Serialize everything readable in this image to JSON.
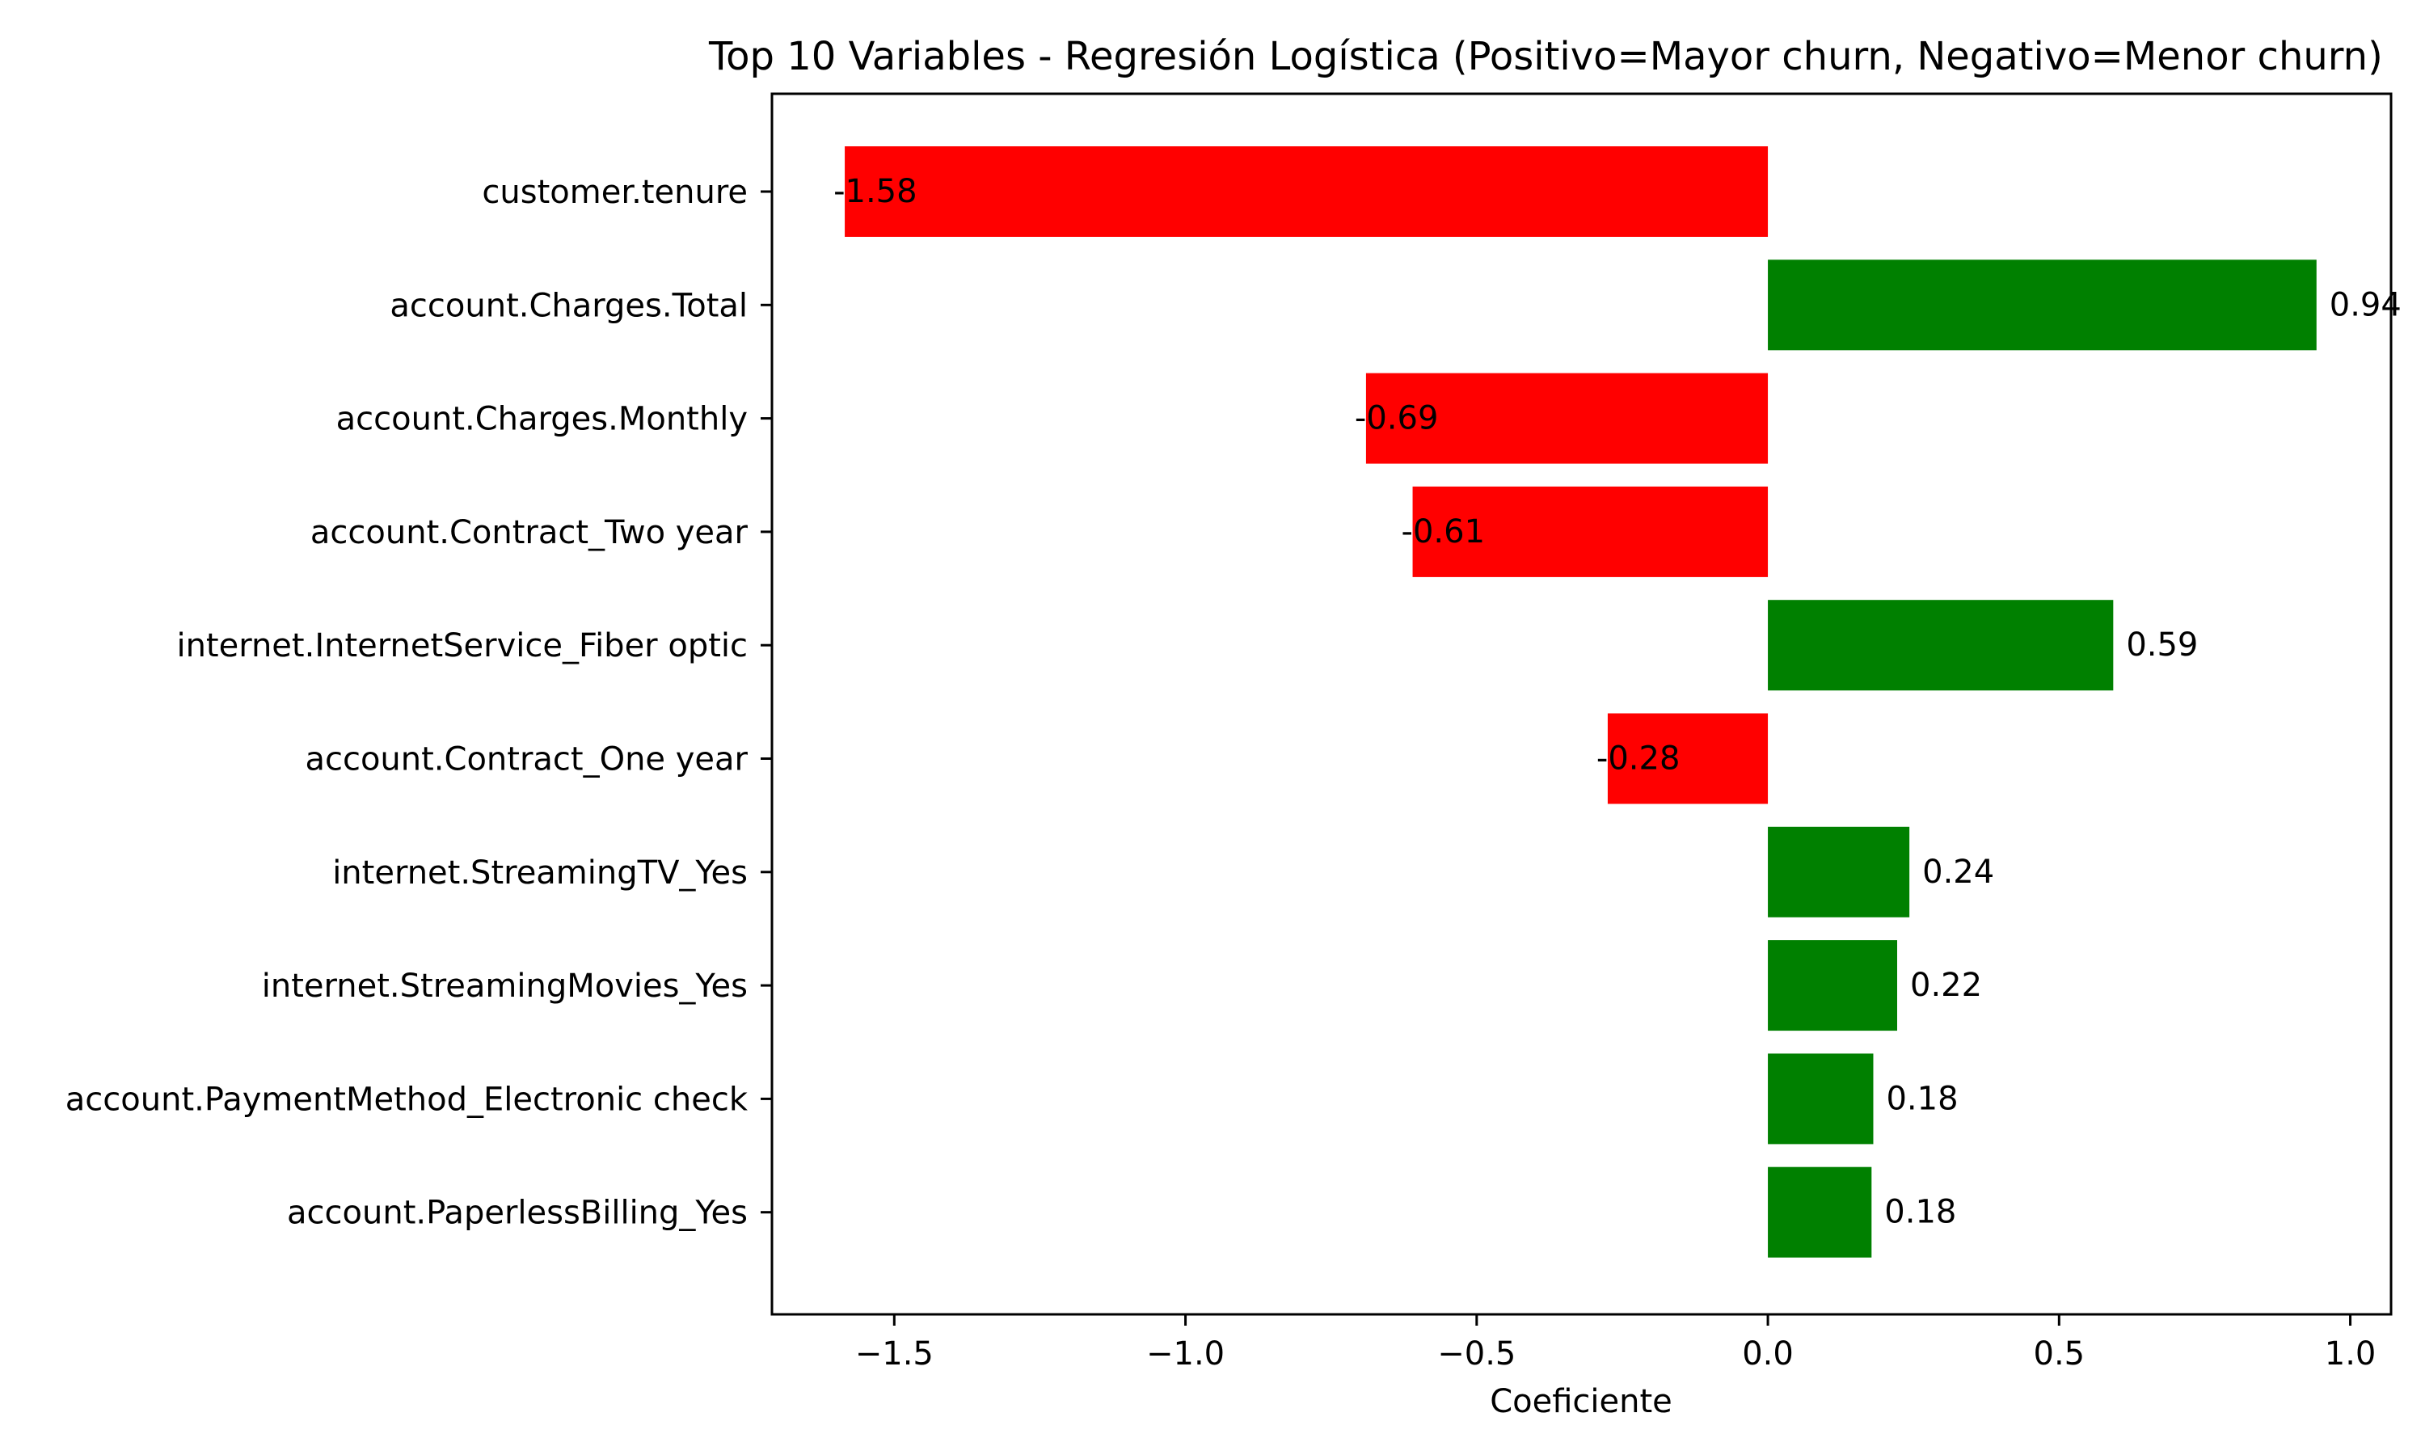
{
  "chart_data": {
    "type": "bar",
    "orientation": "horizontal",
    "title": "Top 10 Variables - Regresión Logística (Positivo=Mayor churn, Negativo=Menor churn)",
    "xlabel": "Coeficiente",
    "ylabel": "",
    "xlim": [
      -1.71,
      1.07
    ],
    "x_ticks": [
      -1.5,
      -1.0,
      -0.5,
      0.0,
      0.5,
      1.0
    ],
    "x_tick_labels": [
      "−1.5",
      "−1.0",
      "−0.5",
      "0.0",
      "0.5",
      "1.0"
    ],
    "grid": false,
    "legend": "none",
    "colors": {
      "positive": "#008000",
      "negative": "#ff0000"
    },
    "categories": [
      "customer.tenure",
      "account.Charges.Total",
      "account.Charges.Monthly",
      "account.Contract_Two year",
      "internet.InternetService_Fiber optic",
      "account.Contract_One year",
      "internet.StreamingTV_Yes",
      "internet.StreamingMovies_Yes",
      "account.PaymentMethod_Electronic check",
      "account.PaperlessBilling_Yes"
    ],
    "values": [
      -1.585,
      0.942,
      -0.69,
      -0.61,
      0.593,
      -0.275,
      0.243,
      0.222,
      0.181,
      0.178
    ],
    "value_labels": [
      "-1.58",
      "0.94",
      "-0.69",
      "-0.61",
      "0.59",
      "-0.28",
      "0.24",
      "0.22",
      "0.18",
      "0.18"
    ]
  }
}
